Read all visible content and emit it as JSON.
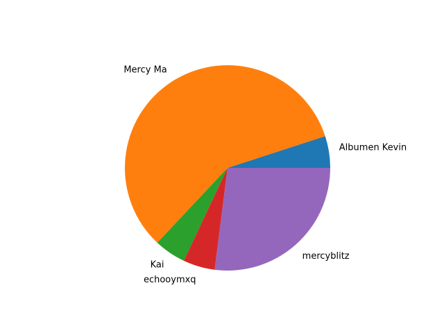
{
  "chart_data": {
    "type": "pie",
    "start_angle": 0,
    "direction": "counterclockwise",
    "slices": [
      {
        "label": "Albumen Kevin",
        "value": 5,
        "color": "#1f77b4"
      },
      {
        "label": "Mercy Ma",
        "value": 58,
        "color": "#ff7f0e"
      },
      {
        "label": "Kai",
        "value": 5,
        "color": "#2ca02c"
      },
      {
        "label": "echooymxq",
        "value": 5,
        "color": "#d62728"
      },
      {
        "label": "mercyblitz",
        "value": 27,
        "color": "#9467bd"
      }
    ]
  }
}
